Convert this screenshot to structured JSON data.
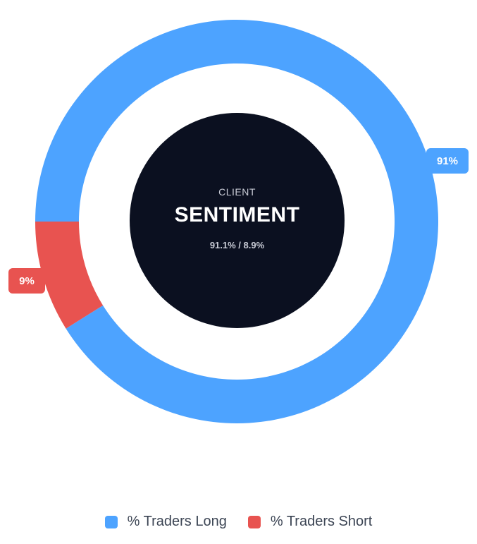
{
  "colors": {
    "long": "#4da3ff",
    "short": "#e85350",
    "center": "#0b1020"
  },
  "center": {
    "kicker": "CLIENT",
    "title": "SENTIMENT",
    "ratio_text": "91.1% / 8.9%"
  },
  "chart_data": {
    "type": "pie",
    "subtype": "donut",
    "categories": [
      "% Traders Long",
      "% Traders Short"
    ],
    "values": [
      91.1,
      8.9
    ],
    "data_labels": [
      "91%",
      "9%"
    ],
    "legend_position": "bottom"
  },
  "legend": {
    "items": [
      {
        "label": "% Traders Long",
        "color": "#4da3ff"
      },
      {
        "label": "% Traders Short",
        "color": "#e85350"
      }
    ]
  }
}
